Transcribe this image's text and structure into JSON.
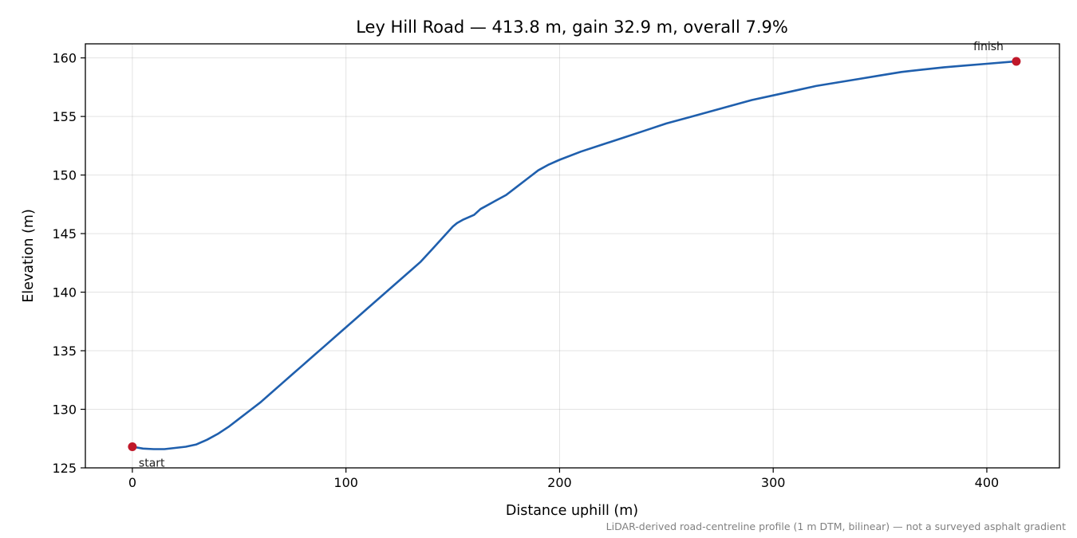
{
  "chart_data": {
    "type": "line",
    "title": "Ley Hill Road — 413.8 m, gain 32.9 m, overall 7.9%",
    "xlabel": "Distance uphill (m)",
    "ylabel": "Elevation (m)",
    "xlim": [
      -22,
      434
    ],
    "ylim": [
      125,
      161.2
    ],
    "xticks": [
      0,
      100,
      200,
      300,
      400
    ],
    "yticks": [
      125,
      130,
      135,
      140,
      145,
      150,
      155,
      160
    ],
    "grid": true,
    "line_color": "#1f5fad",
    "marker_color": "#c0182a",
    "series": [
      {
        "x": [
          0,
          5,
          10,
          15,
          20,
          25,
          30,
          35,
          40,
          45,
          50,
          55,
          60,
          65,
          70,
          75,
          80,
          85,
          90,
          95,
          100,
          105,
          110,
          115,
          120,
          125,
          130,
          135,
          140,
          145,
          150,
          152,
          155,
          160,
          163,
          165,
          170,
          175,
          180,
          185,
          190,
          195,
          200,
          210,
          220,
          230,
          240,
          250,
          260,
          270,
          280,
          290,
          300,
          310,
          320,
          330,
          340,
          350,
          360,
          370,
          380,
          390,
          400,
          413.8
        ],
        "y": [
          126.8,
          126.65,
          126.6,
          126.6,
          126.7,
          126.8,
          127.0,
          127.4,
          127.9,
          128.5,
          129.2,
          129.9,
          130.6,
          131.4,
          132.2,
          133.0,
          133.8,
          134.6,
          135.4,
          136.2,
          137.0,
          137.8,
          138.6,
          139.4,
          140.2,
          141.0,
          141.8,
          142.6,
          143.6,
          144.6,
          145.6,
          145.9,
          146.2,
          146.6,
          147.1,
          147.3,
          147.8,
          148.3,
          149.0,
          149.7,
          150.4,
          150.9,
          151.3,
          152.0,
          152.6,
          153.2,
          153.8,
          154.4,
          154.9,
          155.4,
          155.9,
          156.4,
          156.8,
          157.2,
          157.6,
          157.9,
          158.2,
          158.5,
          158.8,
          159.0,
          159.2,
          159.35,
          159.5,
          159.7
        ]
      }
    ],
    "annotations": [
      {
        "label": "start",
        "x": 0,
        "y": 126.8
      },
      {
        "label": "finish",
        "x": 413.8,
        "y": 159.7
      }
    ],
    "footnote": "LiDAR-derived road-centreline profile (1 m DTM, bilinear) — not a surveyed asphalt gradient"
  }
}
